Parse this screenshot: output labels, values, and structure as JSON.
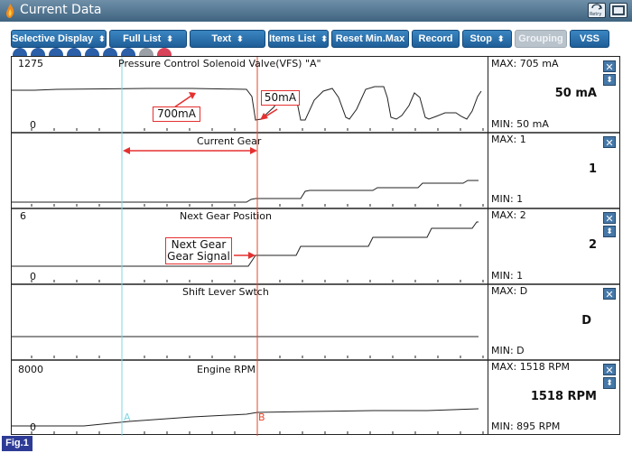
{
  "window": {
    "title": "Current Data",
    "retry_label": "Retry"
  },
  "toolbar": {
    "buttons": [
      {
        "label": "Selective Display",
        "has_spinner": true
      },
      {
        "label": "Full List",
        "has_spinner": true
      },
      {
        "label": "Text",
        "has_spinner": true
      },
      {
        "label": "Items List",
        "has_spinner": true
      },
      {
        "label": "Reset Min.Max",
        "has_spinner": false
      },
      {
        "label": "Record",
        "has_spinner": false
      },
      {
        "label": "Stop",
        "has_spinner": true
      },
      {
        "label": "Grouping",
        "has_spinner": false,
        "disabled": true
      },
      {
        "label": "VSS",
        "has_spinner": false
      }
    ]
  },
  "panels": [
    {
      "name": "Pressure Control Solenoid Valve(VFS) \"A\"",
      "scale_max": "1275",
      "scale_min": "0",
      "max": "MAX:  705 mA",
      "min": "MIN:  50 mA",
      "value": "50 mA"
    },
    {
      "name": "Current Gear",
      "scale_max": "",
      "scale_min": "",
      "max": "MAX: 1",
      "min": "MIN: 1",
      "value": "1"
    },
    {
      "name": "Next Gear Position",
      "scale_max": "6",
      "scale_min": "0",
      "max": "MAX:    2",
      "min": "MIN:    1",
      "value": "2"
    },
    {
      "name": "Shift Lever Swtch",
      "scale_max": "",
      "scale_min": "",
      "max": "MAX: D",
      "min": "MIN: D",
      "value": "D"
    },
    {
      "name": "Engine RPM",
      "scale_max": "8000",
      "scale_min": "0",
      "max": "MAX:  1518 RPM",
      "min": "MIN:  895 RPM",
      "value": "1518 RPM"
    }
  ],
  "annotations": {
    "pressure_700": "700mA",
    "pressure_50": "50mA",
    "next_gear_line1": "Next Gear",
    "next_gear_line2": "Gear Signal",
    "cursor_a": "A",
    "cursor_b": "B"
  },
  "figure_label": "Fig.1",
  "colors": {
    "cursor_a": "#7fd6e6",
    "cursor_b": "#e8442a",
    "annotation": "#e53030",
    "button": "#2a70ad"
  }
}
